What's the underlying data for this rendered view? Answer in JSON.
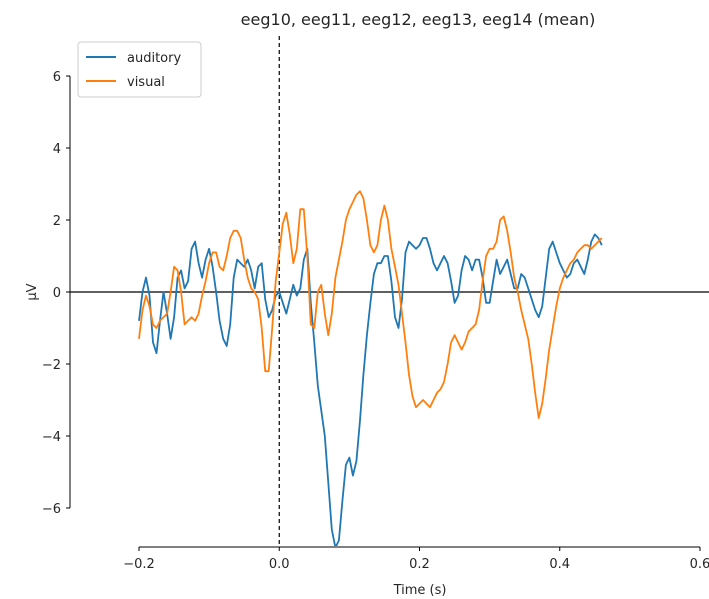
{
  "chart_data": {
    "type": "line",
    "title": "eeg10, eeg11, eeg12, eeg13, eeg14 (mean)",
    "xlabel": "Time (s)",
    "ylabel": "µV",
    "xlim": [
      -0.2,
      0.6
    ],
    "ylim": [
      -7,
      7
    ],
    "x_ticks": [
      -0.2,
      0.0,
      0.2,
      0.4,
      0.6
    ],
    "x_tick_labels": [
      "−0.2",
      "0.0",
      "0.2",
      "0.4",
      "0.6"
    ],
    "y_ticks": [
      -6,
      -4,
      -2,
      0,
      2,
      4,
      6
    ],
    "y_tick_labels": [
      "−6",
      "−4",
      "−2",
      "0",
      "2",
      "4",
      "6"
    ],
    "grid": false,
    "legend_position": "upper-left",
    "vline_x": 0.0,
    "hline_y": 0.0,
    "series": [
      {
        "name": "auditory",
        "color": "#1f77b4",
        "points": [
          [
            -0.2,
            -0.8
          ],
          [
            -0.195,
            0.0
          ],
          [
            -0.19,
            0.4
          ],
          [
            -0.185,
            -0.1
          ],
          [
            -0.18,
            -1.4
          ],
          [
            -0.175,
            -1.7
          ],
          [
            -0.17,
            -0.8
          ],
          [
            -0.165,
            0.0
          ],
          [
            -0.16,
            -0.6
          ],
          [
            -0.155,
            -1.3
          ],
          [
            -0.15,
            -0.7
          ],
          [
            -0.145,
            0.4
          ],
          [
            -0.14,
            0.6
          ],
          [
            -0.135,
            0.1
          ],
          [
            -0.13,
            0.3
          ],
          [
            -0.125,
            1.2
          ],
          [
            -0.12,
            1.4
          ],
          [
            -0.115,
            0.8
          ],
          [
            -0.11,
            0.4
          ],
          [
            -0.105,
            0.9
          ],
          [
            -0.1,
            1.2
          ],
          [
            -0.095,
            0.7
          ],
          [
            -0.09,
            0.0
          ],
          [
            -0.085,
            -0.8
          ],
          [
            -0.08,
            -1.3
          ],
          [
            -0.075,
            -1.5
          ],
          [
            -0.07,
            -0.9
          ],
          [
            -0.065,
            0.4
          ],
          [
            -0.06,
            0.9
          ],
          [
            -0.055,
            0.8
          ],
          [
            -0.05,
            0.7
          ],
          [
            -0.045,
            0.9
          ],
          [
            -0.04,
            0.6
          ],
          [
            -0.035,
            0.1
          ],
          [
            -0.03,
            0.7
          ],
          [
            -0.025,
            0.8
          ],
          [
            -0.02,
            -0.2
          ],
          [
            -0.015,
            -0.7
          ],
          [
            -0.01,
            -0.5
          ],
          [
            -0.005,
            -0.1
          ],
          [
            0.0,
            0.0
          ],
          [
            0.005,
            -0.3
          ],
          [
            0.01,
            -0.6
          ],
          [
            0.015,
            -0.2
          ],
          [
            0.02,
            0.2
          ],
          [
            0.025,
            -0.1
          ],
          [
            0.03,
            0.1
          ],
          [
            0.035,
            0.9
          ],
          [
            0.04,
            1.2
          ],
          [
            0.045,
            -0.3
          ],
          [
            0.05,
            -1.4
          ],
          [
            0.055,
            -2.6
          ],
          [
            0.06,
            -3.3
          ],
          [
            0.065,
            -4.0
          ],
          [
            0.07,
            -5.3
          ],
          [
            0.075,
            -6.6
          ],
          [
            0.08,
            -7.1
          ],
          [
            0.085,
            -6.9
          ],
          [
            0.09,
            -5.8
          ],
          [
            0.095,
            -4.8
          ],
          [
            0.1,
            -4.6
          ],
          [
            0.105,
            -5.1
          ],
          [
            0.11,
            -4.7
          ],
          [
            0.115,
            -3.6
          ],
          [
            0.12,
            -2.3
          ],
          [
            0.125,
            -1.2
          ],
          [
            0.13,
            -0.3
          ],
          [
            0.135,
            0.5
          ],
          [
            0.14,
            0.8
          ],
          [
            0.145,
            0.8
          ],
          [
            0.15,
            1.0
          ],
          [
            0.155,
            1.0
          ],
          [
            0.16,
            0.3
          ],
          [
            0.165,
            -0.7
          ],
          [
            0.17,
            -1.0
          ],
          [
            0.175,
            -0.2
          ],
          [
            0.18,
            1.1
          ],
          [
            0.185,
            1.4
          ],
          [
            0.19,
            1.3
          ],
          [
            0.195,
            1.2
          ],
          [
            0.2,
            1.3
          ],
          [
            0.205,
            1.5
          ],
          [
            0.21,
            1.5
          ],
          [
            0.215,
            1.2
          ],
          [
            0.22,
            0.8
          ],
          [
            0.225,
            0.6
          ],
          [
            0.23,
            0.8
          ],
          [
            0.235,
            1.0
          ],
          [
            0.24,
            0.8
          ],
          [
            0.245,
            0.3
          ],
          [
            0.25,
            -0.3
          ],
          [
            0.255,
            -0.1
          ],
          [
            0.26,
            0.6
          ],
          [
            0.265,
            1.0
          ],
          [
            0.27,
            0.9
          ],
          [
            0.275,
            0.6
          ],
          [
            0.28,
            0.9
          ],
          [
            0.285,
            0.9
          ],
          [
            0.29,
            0.4
          ],
          [
            0.295,
            -0.3
          ],
          [
            0.3,
            -0.3
          ],
          [
            0.305,
            0.3
          ],
          [
            0.31,
            0.9
          ],
          [
            0.315,
            0.5
          ],
          [
            0.32,
            0.7
          ],
          [
            0.325,
            0.9
          ],
          [
            0.33,
            0.5
          ],
          [
            0.335,
            0.1
          ],
          [
            0.34,
            0.1
          ],
          [
            0.345,
            0.5
          ],
          [
            0.35,
            0.4
          ],
          [
            0.355,
            0.1
          ],
          [
            0.36,
            -0.2
          ],
          [
            0.365,
            -0.5
          ],
          [
            0.37,
            -0.7
          ],
          [
            0.375,
            -0.4
          ],
          [
            0.38,
            0.4
          ],
          [
            0.385,
            1.2
          ],
          [
            0.39,
            1.4
          ],
          [
            0.395,
            1.1
          ],
          [
            0.4,
            0.8
          ],
          [
            0.405,
            0.6
          ],
          [
            0.41,
            0.4
          ],
          [
            0.415,
            0.5
          ],
          [
            0.42,
            0.8
          ],
          [
            0.425,
            0.9
          ],
          [
            0.43,
            0.7
          ],
          [
            0.435,
            0.5
          ],
          [
            0.44,
            0.9
          ],
          [
            0.445,
            1.4
          ],
          [
            0.45,
            1.6
          ],
          [
            0.455,
            1.5
          ],
          [
            0.46,
            1.3
          ]
        ]
      },
      {
        "name": "visual",
        "color": "#ff7f0e",
        "points": [
          [
            -0.2,
            -1.3
          ],
          [
            -0.195,
            -0.5
          ],
          [
            -0.19,
            -0.1
          ],
          [
            -0.185,
            -0.4
          ],
          [
            -0.18,
            -0.9
          ],
          [
            -0.175,
            -1.0
          ],
          [
            -0.17,
            -0.8
          ],
          [
            -0.165,
            -0.7
          ],
          [
            -0.16,
            -0.6
          ],
          [
            -0.155,
            0.0
          ],
          [
            -0.15,
            0.7
          ],
          [
            -0.145,
            0.6
          ],
          [
            -0.14,
            0.0
          ],
          [
            -0.135,
            -0.9
          ],
          [
            -0.13,
            -0.8
          ],
          [
            -0.125,
            -0.7
          ],
          [
            -0.12,
            -0.8
          ],
          [
            -0.115,
            -0.6
          ],
          [
            -0.11,
            -0.1
          ],
          [
            -0.105,
            0.3
          ],
          [
            -0.1,
            0.8
          ],
          [
            -0.095,
            1.1
          ],
          [
            -0.09,
            1.1
          ],
          [
            -0.085,
            0.7
          ],
          [
            -0.08,
            0.6
          ],
          [
            -0.075,
            1.0
          ],
          [
            -0.07,
            1.5
          ],
          [
            -0.065,
            1.7
          ],
          [
            -0.06,
            1.7
          ],
          [
            -0.055,
            1.5
          ],
          [
            -0.05,
            0.9
          ],
          [
            -0.045,
            0.4
          ],
          [
            -0.04,
            0.1
          ],
          [
            -0.035,
            0.0
          ],
          [
            -0.03,
            -0.2
          ],
          [
            -0.025,
            -1.0
          ],
          [
            -0.02,
            -2.2
          ],
          [
            -0.015,
            -2.2
          ],
          [
            -0.01,
            -1.0
          ],
          [
            -0.005,
            0.3
          ],
          [
            0.0,
            1.1
          ],
          [
            0.005,
            1.9
          ],
          [
            0.01,
            2.2
          ],
          [
            0.015,
            1.6
          ],
          [
            0.02,
            0.8
          ],
          [
            0.025,
            1.2
          ],
          [
            0.03,
            2.3
          ],
          [
            0.035,
            2.3
          ],
          [
            0.04,
            1.0
          ],
          [
            0.045,
            -0.9
          ],
          [
            0.05,
            -1.0
          ],
          [
            0.055,
            0.0
          ],
          [
            0.06,
            0.2
          ],
          [
            0.065,
            -0.6
          ],
          [
            0.07,
            -1.2
          ],
          [
            0.075,
            -0.6
          ],
          [
            0.08,
            0.4
          ],
          [
            0.085,
            0.9
          ],
          [
            0.09,
            1.4
          ],
          [
            0.095,
            2.0
          ],
          [
            0.1,
            2.3
          ],
          [
            0.105,
            2.5
          ],
          [
            0.11,
            2.7
          ],
          [
            0.115,
            2.8
          ],
          [
            0.12,
            2.6
          ],
          [
            0.125,
            2.0
          ],
          [
            0.13,
            1.3
          ],
          [
            0.135,
            1.1
          ],
          [
            0.14,
            1.3
          ],
          [
            0.145,
            2.0
          ],
          [
            0.15,
            2.4
          ],
          [
            0.155,
            2.0
          ],
          [
            0.16,
            1.2
          ],
          [
            0.165,
            0.7
          ],
          [
            0.17,
            0.2
          ],
          [
            0.175,
            -0.6
          ],
          [
            0.18,
            -1.4
          ],
          [
            0.185,
            -2.3
          ],
          [
            0.19,
            -2.9
          ],
          [
            0.195,
            -3.2
          ],
          [
            0.2,
            -3.1
          ],
          [
            0.205,
            -3.0
          ],
          [
            0.21,
            -3.1
          ],
          [
            0.215,
            -3.2
          ],
          [
            0.22,
            -3.0
          ],
          [
            0.225,
            -2.8
          ],
          [
            0.23,
            -2.7
          ],
          [
            0.235,
            -2.5
          ],
          [
            0.24,
            -2.0
          ],
          [
            0.245,
            -1.4
          ],
          [
            0.25,
            -1.2
          ],
          [
            0.255,
            -1.4
          ],
          [
            0.26,
            -1.6
          ],
          [
            0.265,
            -1.4
          ],
          [
            0.27,
            -1.1
          ],
          [
            0.275,
            -1.0
          ],
          [
            0.28,
            -0.9
          ],
          [
            0.285,
            -0.5
          ],
          [
            0.29,
            0.3
          ],
          [
            0.295,
            1.0
          ],
          [
            0.3,
            1.2
          ],
          [
            0.305,
            1.2
          ],
          [
            0.31,
            1.4
          ],
          [
            0.315,
            2.0
          ],
          [
            0.32,
            2.1
          ],
          [
            0.325,
            1.7
          ],
          [
            0.33,
            1.1
          ],
          [
            0.335,
            0.4
          ],
          [
            0.34,
            0.0
          ],
          [
            0.345,
            -0.5
          ],
          [
            0.35,
            -0.9
          ],
          [
            0.355,
            -1.3
          ],
          [
            0.36,
            -2.0
          ],
          [
            0.365,
            -2.8
          ],
          [
            0.37,
            -3.5
          ],
          [
            0.375,
            -3.1
          ],
          [
            0.38,
            -2.4
          ],
          [
            0.385,
            -1.6
          ],
          [
            0.39,
            -1.0
          ],
          [
            0.395,
            -0.4
          ],
          [
            0.4,
            0.1
          ],
          [
            0.405,
            0.4
          ],
          [
            0.41,
            0.6
          ],
          [
            0.415,
            0.8
          ],
          [
            0.42,
            0.9
          ],
          [
            0.425,
            1.1
          ],
          [
            0.43,
            1.2
          ],
          [
            0.435,
            1.3
          ],
          [
            0.44,
            1.3
          ],
          [
            0.445,
            1.2
          ],
          [
            0.45,
            1.3
          ],
          [
            0.455,
            1.4
          ],
          [
            0.46,
            1.5
          ]
        ]
      }
    ]
  }
}
